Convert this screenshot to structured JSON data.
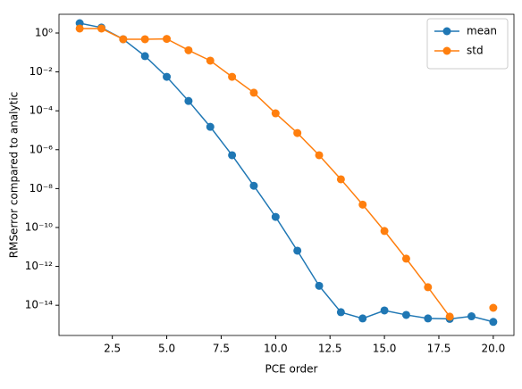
{
  "chart_data": {
    "type": "line",
    "xlabel": "PCE order",
    "ylabel": "RMSerror compared to analytic",
    "x": [
      1,
      2,
      3,
      4,
      5,
      6,
      7,
      8,
      9,
      10,
      11,
      12,
      13,
      14,
      15,
      16,
      17,
      18,
      19,
      20
    ],
    "series": [
      {
        "name": "mean",
        "color": "#1f77b4",
        "values": [
          3.2,
          1.9,
          0.48,
          0.065,
          0.0056,
          0.00032,
          1.5e-05,
          5.2e-07,
          1.4e-08,
          3.5e-10,
          6.4e-12,
          1e-13,
          4.4e-15,
          2.1e-15,
          5.4e-15,
          3.2e-15,
          2.1e-15,
          2e-15,
          2.7e-15,
          1.4e-15
        ]
      },
      {
        "name": "std",
        "color": "#ff7f0e",
        "values": [
          1.7,
          1.7,
          0.48,
          0.48,
          0.5,
          0.13,
          0.038,
          0.0056,
          0.00085,
          7.4e-05,
          7.2e-06,
          5.2e-07,
          3e-08,
          1.5e-09,
          6.6e-11,
          2.5e-12,
          8.5e-14,
          2.6e-15,
          null,
          7.4e-15
        ]
      }
    ],
    "xlim": [
      0.05,
      20.95
    ],
    "xticks": [
      2.5,
      {
        "value": 5,
        "label": "5.0"
      },
      7.5,
      {
        "value": 10,
        "label": "10.0"
      },
      12.5,
      {
        "value": 15,
        "label": "15.0"
      },
      17.5,
      {
        "value": 20,
        "label": "20.0"
      }
    ],
    "ylim": [
      2.8e-16,
      9.2
    ],
    "ylog": true,
    "yticks": [
      {
        "value": 1e-14,
        "label": "10⁻¹⁴"
      },
      {
        "value": 1e-12,
        "label": "10⁻¹²"
      },
      {
        "value": 1e-10,
        "label": "10⁻¹⁰"
      },
      {
        "value": 1e-08,
        "label": "10⁻⁸"
      },
      {
        "value": 1e-06,
        "label": "10⁻⁶"
      },
      {
        "value": 0.0001,
        "label": "10⁻⁴"
      },
      {
        "value": 0.01,
        "label": "10⁻²"
      },
      {
        "value": 1,
        "label": "10⁰"
      }
    ],
    "legend": "upper-right",
    "grid": false,
    "markers": true
  }
}
